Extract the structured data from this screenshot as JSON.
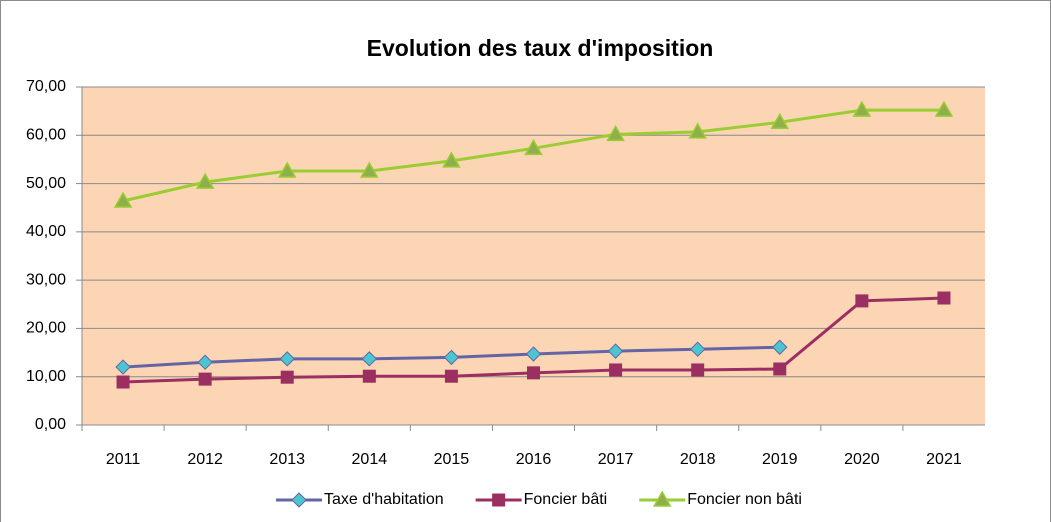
{
  "chart_data": {
    "type": "line",
    "title": "Evolution des taux d'imposition",
    "categories": [
      "2011",
      "2012",
      "2013",
      "2014",
      "2015",
      "2016",
      "2017",
      "2018",
      "2019",
      "2020",
      "2021"
    ],
    "series": [
      {
        "name": "Taxe d'habitation",
        "color": "#6464a6",
        "marker_color": "#4bc6d0",
        "marker": "diamond",
        "values": [
          12.0,
          13.0,
          13.7,
          13.7,
          14.0,
          14.7,
          15.3,
          15.7,
          16.1,
          null,
          null
        ]
      },
      {
        "name": "Foncier bâti",
        "color": "#9b2f62",
        "marker_color": "#9b2f62",
        "marker": "square",
        "values": [
          8.9,
          9.5,
          9.9,
          10.1,
          10.1,
          10.8,
          11.4,
          11.4,
          11.6,
          25.7,
          26.3
        ]
      },
      {
        "name": "Foncier non bâti",
        "color": "#9acd32",
        "marker_color": "#8fae4c",
        "marker": "triangle",
        "values": [
          46.4,
          50.3,
          52.6,
          52.6,
          54.7,
          57.3,
          60.2,
          60.7,
          62.7,
          65.2,
          65.2
        ]
      }
    ],
    "ylim": [
      0,
      70
    ],
    "yticks": [
      {
        "value": 0,
        "label": "0,00"
      },
      {
        "value": 10,
        "label": "10,00"
      },
      {
        "value": 20,
        "label": "20,00"
      },
      {
        "value": 30,
        "label": "30,00"
      },
      {
        "value": 40,
        "label": "40,00"
      },
      {
        "value": 50,
        "label": "50,00"
      },
      {
        "value": 60,
        "label": "60,00"
      },
      {
        "value": 70,
        "label": "70,00"
      }
    ],
    "grid": true,
    "plot_background": "#fcd5b5",
    "legend": "bottom"
  }
}
